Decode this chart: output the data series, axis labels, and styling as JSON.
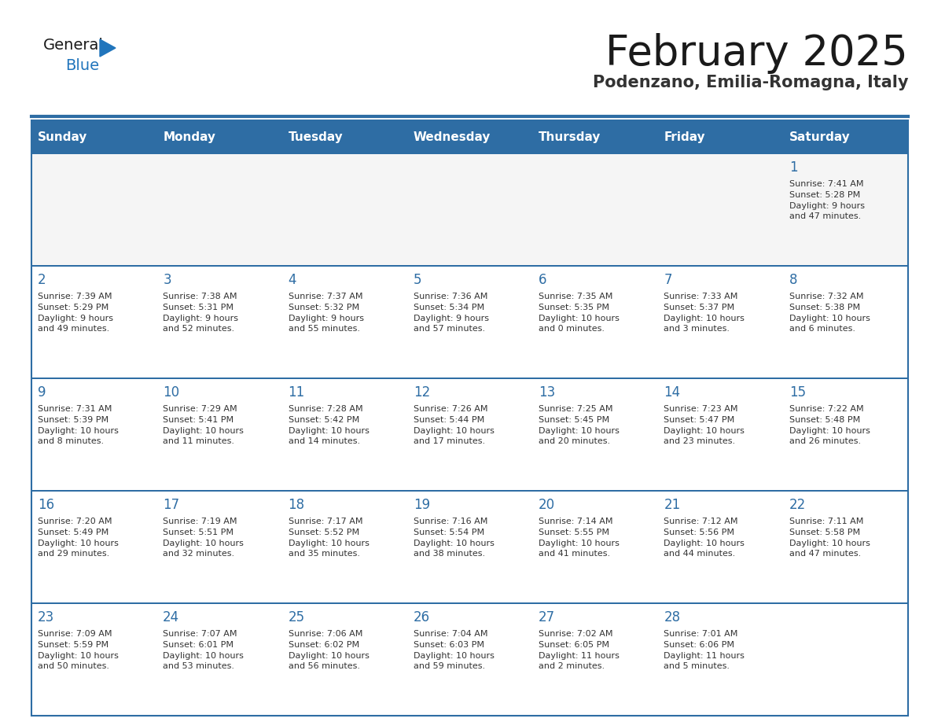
{
  "title": "February 2025",
  "subtitle": "Podenzano, Emilia-Romagna, Italy",
  "header_color": "#2E6DA4",
  "header_text_color": "#FFFFFF",
  "cell_bg": "#FFFFFF",
  "cell_bg_first": "#F5F5F5",
  "day_headers": [
    "Sunday",
    "Monday",
    "Tuesday",
    "Wednesday",
    "Thursday",
    "Friday",
    "Saturday"
  ],
  "title_color": "#1a1a1a",
  "subtitle_color": "#333333",
  "day_number_color": "#2E6DA4",
  "info_color": "#333333",
  "line_color": "#2E6DA4",
  "logo_black": "#1a1a1a",
  "logo_blue": "#2175BC",
  "triangle_color": "#2175BC",
  "weeks": [
    [
      {
        "day": null,
        "sunrise": null,
        "sunset": null,
        "daylight": null
      },
      {
        "day": null,
        "sunrise": null,
        "sunset": null,
        "daylight": null
      },
      {
        "day": null,
        "sunrise": null,
        "sunset": null,
        "daylight": null
      },
      {
        "day": null,
        "sunrise": null,
        "sunset": null,
        "daylight": null
      },
      {
        "day": null,
        "sunrise": null,
        "sunset": null,
        "daylight": null
      },
      {
        "day": null,
        "sunrise": null,
        "sunset": null,
        "daylight": null
      },
      {
        "day": 1,
        "sunrise": "7:41 AM",
        "sunset": "5:28 PM",
        "daylight": "9 hours\nand 47 minutes."
      }
    ],
    [
      {
        "day": 2,
        "sunrise": "7:39 AM",
        "sunset": "5:29 PM",
        "daylight": "9 hours\nand 49 minutes."
      },
      {
        "day": 3,
        "sunrise": "7:38 AM",
        "sunset": "5:31 PM",
        "daylight": "9 hours\nand 52 minutes."
      },
      {
        "day": 4,
        "sunrise": "7:37 AM",
        "sunset": "5:32 PM",
        "daylight": "9 hours\nand 55 minutes."
      },
      {
        "day": 5,
        "sunrise": "7:36 AM",
        "sunset": "5:34 PM",
        "daylight": "9 hours\nand 57 minutes."
      },
      {
        "day": 6,
        "sunrise": "7:35 AM",
        "sunset": "5:35 PM",
        "daylight": "10 hours\nand 0 minutes."
      },
      {
        "day": 7,
        "sunrise": "7:33 AM",
        "sunset": "5:37 PM",
        "daylight": "10 hours\nand 3 minutes."
      },
      {
        "day": 8,
        "sunrise": "7:32 AM",
        "sunset": "5:38 PM",
        "daylight": "10 hours\nand 6 minutes."
      }
    ],
    [
      {
        "day": 9,
        "sunrise": "7:31 AM",
        "sunset": "5:39 PM",
        "daylight": "10 hours\nand 8 minutes."
      },
      {
        "day": 10,
        "sunrise": "7:29 AM",
        "sunset": "5:41 PM",
        "daylight": "10 hours\nand 11 minutes."
      },
      {
        "day": 11,
        "sunrise": "7:28 AM",
        "sunset": "5:42 PM",
        "daylight": "10 hours\nand 14 minutes."
      },
      {
        "day": 12,
        "sunrise": "7:26 AM",
        "sunset": "5:44 PM",
        "daylight": "10 hours\nand 17 minutes."
      },
      {
        "day": 13,
        "sunrise": "7:25 AM",
        "sunset": "5:45 PM",
        "daylight": "10 hours\nand 20 minutes."
      },
      {
        "day": 14,
        "sunrise": "7:23 AM",
        "sunset": "5:47 PM",
        "daylight": "10 hours\nand 23 minutes."
      },
      {
        "day": 15,
        "sunrise": "7:22 AM",
        "sunset": "5:48 PM",
        "daylight": "10 hours\nand 26 minutes."
      }
    ],
    [
      {
        "day": 16,
        "sunrise": "7:20 AM",
        "sunset": "5:49 PM",
        "daylight": "10 hours\nand 29 minutes."
      },
      {
        "day": 17,
        "sunrise": "7:19 AM",
        "sunset": "5:51 PM",
        "daylight": "10 hours\nand 32 minutes."
      },
      {
        "day": 18,
        "sunrise": "7:17 AM",
        "sunset": "5:52 PM",
        "daylight": "10 hours\nand 35 minutes."
      },
      {
        "day": 19,
        "sunrise": "7:16 AM",
        "sunset": "5:54 PM",
        "daylight": "10 hours\nand 38 minutes."
      },
      {
        "day": 20,
        "sunrise": "7:14 AM",
        "sunset": "5:55 PM",
        "daylight": "10 hours\nand 41 minutes."
      },
      {
        "day": 21,
        "sunrise": "7:12 AM",
        "sunset": "5:56 PM",
        "daylight": "10 hours\nand 44 minutes."
      },
      {
        "day": 22,
        "sunrise": "7:11 AM",
        "sunset": "5:58 PM",
        "daylight": "10 hours\nand 47 minutes."
      }
    ],
    [
      {
        "day": 23,
        "sunrise": "7:09 AM",
        "sunset": "5:59 PM",
        "daylight": "10 hours\nand 50 minutes."
      },
      {
        "day": 24,
        "sunrise": "7:07 AM",
        "sunset": "6:01 PM",
        "daylight": "10 hours\nand 53 minutes."
      },
      {
        "day": 25,
        "sunrise": "7:06 AM",
        "sunset": "6:02 PM",
        "daylight": "10 hours\nand 56 minutes."
      },
      {
        "day": 26,
        "sunrise": "7:04 AM",
        "sunset": "6:03 PM",
        "daylight": "10 hours\nand 59 minutes."
      },
      {
        "day": 27,
        "sunrise": "7:02 AM",
        "sunset": "6:05 PM",
        "daylight": "11 hours\nand 2 minutes."
      },
      {
        "day": 28,
        "sunrise": "7:01 AM",
        "sunset": "6:06 PM",
        "daylight": "11 hours\nand 5 minutes."
      },
      {
        "day": null,
        "sunrise": null,
        "sunset": null,
        "daylight": null
      }
    ]
  ]
}
